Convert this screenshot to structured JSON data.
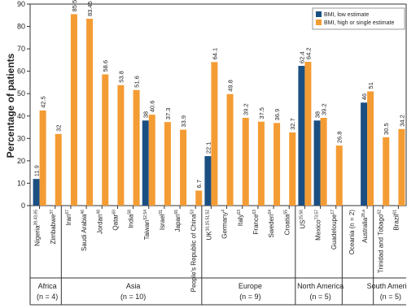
{
  "chart_data": {
    "type": "bar",
    "y_label": "Percentage of patients",
    "ylim": [
      0,
      90
    ],
    "yticks": [
      0,
      10,
      20,
      30,
      40,
      50,
      60,
      70,
      80,
      90
    ],
    "legend": "top-right",
    "series": [
      {
        "name": "BMI, low estimate",
        "color": "#1b4f82"
      },
      {
        "name": "BMI, high or single estimate",
        "color": "#f49c34"
      }
    ],
    "groups": [
      {
        "name": "Africa",
        "sample": "(n = 4)",
        "categories": [
          "Nigeria",
          "Zimbabwe"
        ],
        "superscripts": [
          "39,43,65",
          "37"
        ],
        "series": [
          {
            "values": [
              11.9,
              null
            ]
          },
          {
            "values": [
              42.5,
              32
            ]
          }
        ]
      },
      {
        "name": "Asia",
        "sample": "(n = 10)",
        "categories": [
          "Iran",
          "Saudi Arabia",
          "Jordan",
          "Qatar",
          "India",
          "Taiwan",
          "Israel",
          "Japan",
          "People's Republic of China"
        ],
        "superscripts": [
          "67",
          "46",
          "48",
          "60",
          "58",
          "52,54",
          "31",
          "66",
          "53"
        ],
        "series": [
          {
            "values": [
              null,
              null,
              null,
              null,
              null,
              38,
              null,
              null,
              null
            ]
          },
          {
            "values": [
              85.5,
              83.45,
              58.6,
              53.8,
              51.6,
              40.6,
              37.3,
              33.9,
              6.7
            ]
          }
        ]
      },
      {
        "name": "Europe",
        "sample": "(n = 9)",
        "categories": [
          "UK",
          "Germany",
          "Italy",
          "France",
          "Sweden",
          "Croatia"
        ],
        "superscripts": [
          "10,15,51,52",
          "4",
          "63",
          "63",
          "64",
          "55"
        ],
        "series": [
          {
            "values": [
              22.1,
              null,
              null,
              null,
              null,
              null
            ]
          },
          {
            "values": [
              64.1,
              49.8,
              39.2,
              37.5,
              36.9,
              32.7
            ]
          }
        ]
      },
      {
        "name": "North America",
        "sample": "(n = 5)",
        "categories": [
          "US",
          "Mexico",
          "Guadeloupe"
        ],
        "superscripts": [
          "15,56",
          "73,57",
          "17"
        ],
        "series": [
          {
            "values": [
              62.4,
              38,
              null
            ]
          },
          {
            "values": [
              64.2,
              39.2,
              26.8
            ]
          }
        ]
      },
      {
        "name": "Oceania",
        "sample": "(n = 2)",
        "categories": [
          "Australia"
        ],
        "superscripts": [
          "28,a"
        ],
        "series": [
          {
            "values": [
              46
            ]
          },
          {
            "values": [
              51
            ]
          }
        ]
      },
      {
        "name": "South America",
        "sample": "(n = 5)",
        "categories": [
          "Trinidad and Tobago",
          "Brazil"
        ],
        "superscripts": [
          "62",
          "61"
        ],
        "series": [
          {
            "values": [
              null,
              null
            ]
          },
          {
            "values": [
              30.5,
              34.2
            ]
          }
        ]
      }
    ]
  }
}
